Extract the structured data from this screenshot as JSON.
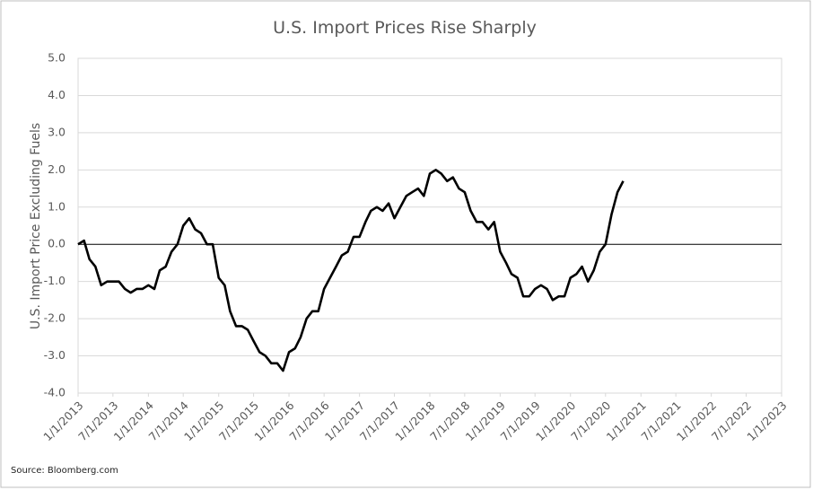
{
  "chart_data": {
    "type": "line",
    "title": "U.S. Import Prices Rise Sharply",
    "ylabel": "U.S. Import Price Excluding Fuels",
    "source": "Source: Bloomberg.com",
    "x": [
      "2013-01-01",
      "2013-02-01",
      "2013-03-01",
      "2013-04-01",
      "2013-05-01",
      "2013-06-01",
      "2013-07-01",
      "2013-08-01",
      "2013-09-01",
      "2013-10-01",
      "2013-11-01",
      "2013-12-01",
      "2014-01-01",
      "2014-02-01",
      "2014-03-01",
      "2014-04-01",
      "2014-05-01",
      "2014-06-01",
      "2014-07-01",
      "2014-08-01",
      "2014-09-01",
      "2014-10-01",
      "2014-11-01",
      "2014-12-01",
      "2015-01-01",
      "2015-02-01",
      "2015-03-01",
      "2015-04-01",
      "2015-05-01",
      "2015-06-01",
      "2015-07-01",
      "2015-08-01",
      "2015-09-01",
      "2015-10-01",
      "2015-11-01",
      "2015-12-01",
      "2016-01-01",
      "2016-02-01",
      "2016-03-01",
      "2016-04-01",
      "2016-05-01",
      "2016-06-01",
      "2016-07-01",
      "2016-08-01",
      "2016-09-01",
      "2016-10-01",
      "2016-11-01",
      "2016-12-01",
      "2017-01-01",
      "2017-02-01",
      "2017-03-01",
      "2017-04-01",
      "2017-05-01",
      "2017-06-01",
      "2017-07-01",
      "2017-08-01",
      "2017-09-01",
      "2017-10-01",
      "2017-11-01",
      "2017-12-01",
      "2018-01-01",
      "2018-02-01",
      "2018-03-01",
      "2018-04-01",
      "2018-05-01",
      "2018-06-01",
      "2018-07-01",
      "2018-08-01",
      "2018-09-01",
      "2018-10-01",
      "2018-11-01",
      "2018-12-01",
      "2019-01-01",
      "2019-02-01",
      "2019-03-01",
      "2019-04-01",
      "2019-05-01",
      "2019-06-01",
      "2019-07-01",
      "2019-08-01",
      "2019-09-01",
      "2019-10-01",
      "2019-11-01",
      "2019-12-01",
      "2020-01-01",
      "2020-02-01",
      "2020-03-01",
      "2020-04-01",
      "2020-05-01",
      "2020-06-01",
      "2020-07-01",
      "2020-08-01",
      "2020-09-01",
      "2020-10-01"
    ],
    "series": [
      {
        "name": "U.S. Import Price Excluding Fuels",
        "color": "#000000",
        "values": [
          0.0,
          0.1,
          -0.4,
          -0.6,
          -1.1,
          -1.0,
          -1.0,
          -1.0,
          -1.2,
          -1.3,
          -1.2,
          -1.2,
          -1.1,
          -1.2,
          -0.7,
          -0.6,
          -0.2,
          0.0,
          0.5,
          0.7,
          0.4,
          0.3,
          0.0,
          0.0,
          -0.9,
          -1.1,
          -1.8,
          -2.2,
          -2.2,
          -2.3,
          -2.6,
          -2.9,
          -3.0,
          -3.2,
          -3.2,
          -3.4,
          -2.9,
          -2.8,
          -2.5,
          -2.0,
          -1.8,
          -1.8,
          -1.2,
          -0.9,
          -0.6,
          -0.3,
          -0.2,
          0.2,
          0.2,
          0.6,
          0.9,
          1.0,
          0.9,
          1.1,
          0.7,
          1.0,
          1.3,
          1.4,
          1.5,
          1.3,
          1.9,
          2.0,
          1.9,
          1.7,
          1.8,
          1.5,
          1.4,
          0.9,
          0.6,
          0.6,
          0.4,
          0.6,
          -0.2,
          -0.5,
          -0.8,
          -0.9,
          -1.4,
          -1.4,
          -1.2,
          -1.1,
          -1.2,
          -1.5,
          -1.4,
          -1.4,
          -0.9,
          -0.8,
          -0.6,
          -1.0,
          -0.7,
          -0.2,
          0.0,
          0.8,
          1.4,
          1.7
        ]
      }
    ],
    "xlim": [
      "2013-01-01",
      "2023-01-01"
    ],
    "xticks": [
      {
        "value": "2013-01-01",
        "label": "1/1/2013"
      },
      {
        "value": "2013-07-01",
        "label": "7/1/2013"
      },
      {
        "value": "2014-01-01",
        "label": "1/1/2014"
      },
      {
        "value": "2014-07-01",
        "label": "7/1/2014"
      },
      {
        "value": "2015-01-01",
        "label": "1/1/2015"
      },
      {
        "value": "2015-07-01",
        "label": "7/1/2015"
      },
      {
        "value": "2016-01-01",
        "label": "1/1/2016"
      },
      {
        "value": "2016-07-01",
        "label": "7/1/2016"
      },
      {
        "value": "2017-01-01",
        "label": "1/1/2017"
      },
      {
        "value": "2017-07-01",
        "label": "7/1/2017"
      },
      {
        "value": "2018-01-01",
        "label": "1/1/2018"
      },
      {
        "value": "2018-07-01",
        "label": "7/1/2018"
      },
      {
        "value": "2019-01-01",
        "label": "1/1/2019"
      },
      {
        "value": "2019-07-01",
        "label": "7/1/2019"
      },
      {
        "value": "2020-01-01",
        "label": "1/1/2020"
      },
      {
        "value": "2020-07-01",
        "label": "7/1/2020"
      },
      {
        "value": "2021-01-01",
        "label": "1/1/2021"
      },
      {
        "value": "2021-07-01",
        "label": "7/1/2021"
      },
      {
        "value": "2022-01-01",
        "label": "1/1/2022"
      },
      {
        "value": "2022-07-01",
        "label": "7/1/2022"
      },
      {
        "value": "2023-01-01",
        "label": "1/1/2023"
      }
    ],
    "ylim": [
      -4,
      5
    ],
    "yticks": [
      {
        "value": -4,
        "label": "-4.0"
      },
      {
        "value": -3,
        "label": "-3.0"
      },
      {
        "value": -2,
        "label": "-2.0"
      },
      {
        "value": -1,
        "label": "-1.0"
      },
      {
        "value": 0,
        "label": "0.0"
      },
      {
        "value": 1,
        "label": "1.0"
      },
      {
        "value": 2,
        "label": "2.0"
      },
      {
        "value": 3,
        "label": "3.0"
      },
      {
        "value": 4,
        "label": "4.0"
      },
      {
        "value": 5,
        "label": "5.0"
      }
    ],
    "grid": true
  }
}
